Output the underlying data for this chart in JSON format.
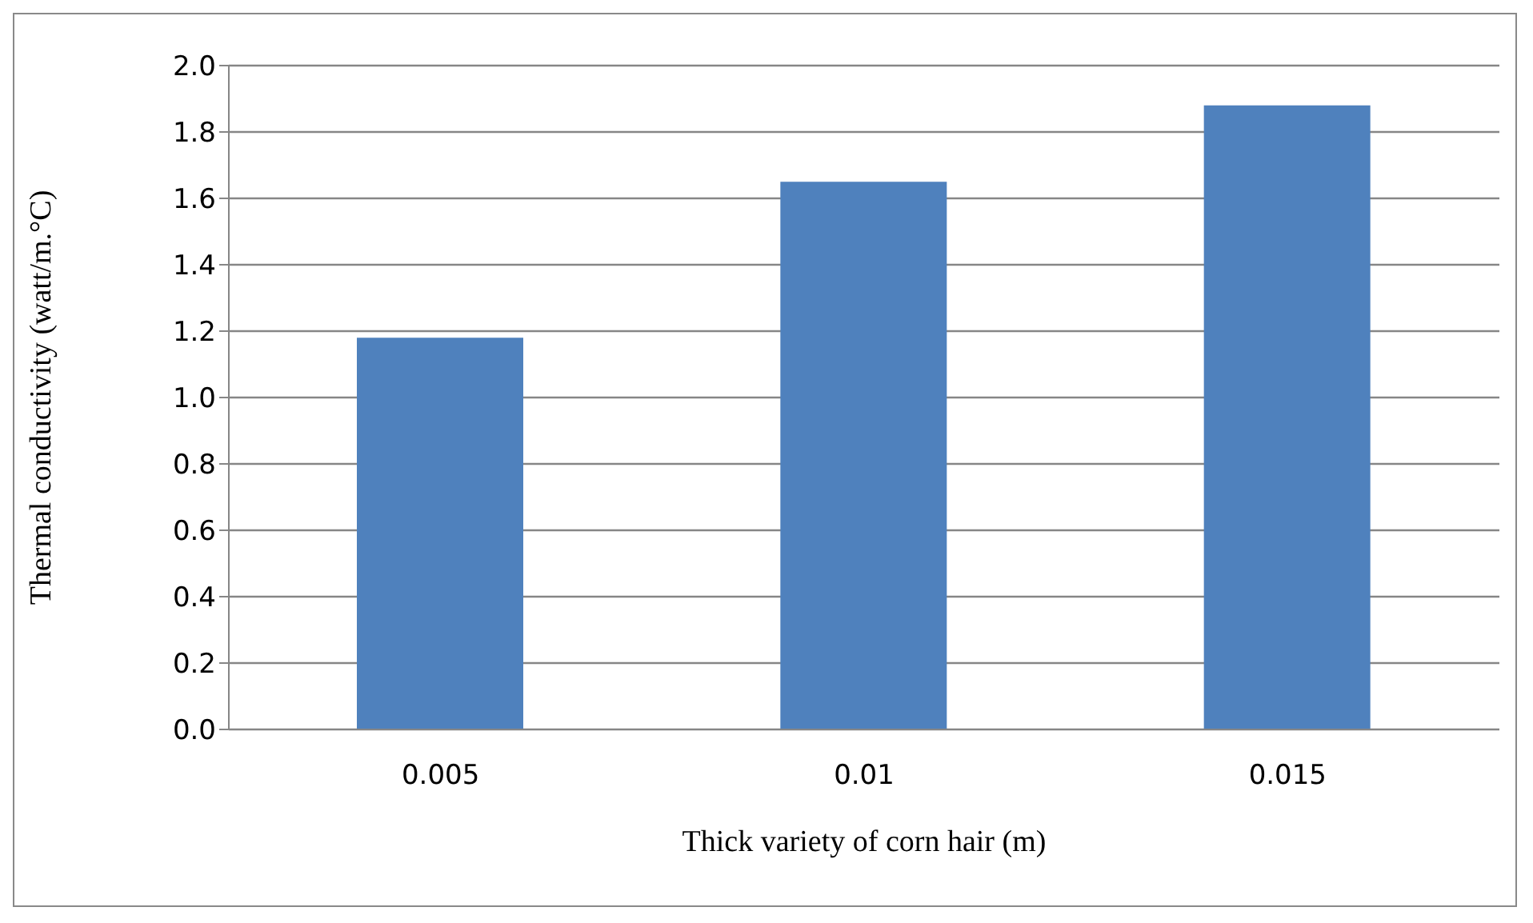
{
  "chart_data": {
    "type": "bar",
    "categories": [
      "0.005",
      "0.01",
      "0.015"
    ],
    "values": [
      1.18,
      1.65,
      1.88
    ],
    "color": "#4f81bd",
    "xlabel": "Thick variety of corn hair (m)",
    "ylabel": "Thermal conductivity (watt/m.°C)",
    "ylim": [
      0,
      2
    ],
    "yticks": [
      {
        "value": 0,
        "label": "0.0"
      },
      0.2,
      0.4,
      0.6,
      0.8,
      {
        "value": 1,
        "label": "1.0"
      },
      1.2,
      1.4,
      1.6,
      1.8,
      {
        "value": 2,
        "label": "2.0"
      }
    ],
    "grid": "y"
  }
}
